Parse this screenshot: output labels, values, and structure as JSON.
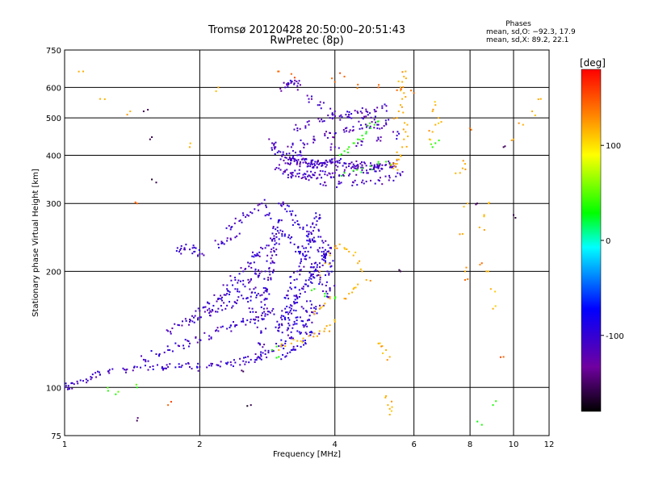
{
  "chart_data": {
    "type": "scatter",
    "title": "Tromsø 20120428 20:50:00–20:51:43",
    "subtitle": "RwPretec (8p)",
    "xlabel": "Frequency [MHz]",
    "ylabel": "Stationary phase Virtual Height [km]",
    "x_scale": "log",
    "y_scale": "log",
    "xlim": [
      1,
      12
    ],
    "ylim": [
      75,
      750
    ],
    "x_ticks": [
      1,
      2,
      4,
      6,
      8,
      10,
      12
    ],
    "y_ticks": [
      75,
      100,
      200,
      300,
      400,
      500,
      600,
      750
    ],
    "grid": true,
    "phases_box": {
      "title": "Phases",
      "line1": "mean, sd,O: −92.3, 17.9",
      "line2": "mean, sd,X: 89.2, 22.1"
    },
    "colorbar": {
      "label": "[deg]",
      "range": [
        -180,
        180
      ],
      "ticks": [
        100,
        0,
        -100
      ],
      "colormap": [
        "#000000",
        "#7000a0",
        "#0000ff",
        "#00ffff",
        "#00ff00",
        "#ffff00",
        "#ff8000",
        "#ff0000"
      ]
    },
    "series": [
      {
        "points_x": [
          1.0,
          1.02,
          1.05,
          1.1,
          1.15,
          1.2,
          1.25,
          1.35,
          1.45,
          1.55,
          1.65,
          1.7,
          1.8,
          1.9,
          2.0,
          2.1,
          2.2,
          2.3,
          2.4,
          2.5,
          2.6,
          2.7,
          2.8,
          2.9,
          3.0,
          1.5,
          1.6,
          1.7,
          1.8,
          1.9,
          2.0,
          2.1,
          2.2,
          2.3,
          2.4,
          2.5,
          2.6,
          2.7,
          2.8,
          2.9,
          1.7,
          1.8,
          1.9,
          2.0,
          2.1,
          2.2,
          2.3,
          2.4,
          2.5,
          2.6,
          2.7,
          2.8,
          1.9,
          2.0,
          2.1,
          2.2,
          2.3,
          2.4,
          2.5,
          2.6,
          2.7,
          2.8,
          2.1,
          2.2,
          2.3,
          2.4,
          2.5,
          2.6,
          2.7,
          2.8,
          2.9,
          2.35,
          2.45,
          2.55,
          2.65,
          2.75,
          2.85,
          2.7,
          2.72,
          2.74,
          2.76,
          2.78,
          2.8,
          2.82,
          2.84,
          2.86,
          2.88,
          2.9,
          2.92,
          2.94,
          2.96,
          2.98,
          3.0,
          2.62,
          2.64,
          2.66,
          2.68,
          1.8,
          1.85,
          1.9,
          1.95,
          2.0,
          2.2,
          2.3,
          2.4
        ],
        "points_y": [
          100,
          101,
          102,
          104,
          106,
          108,
          110,
          112,
          113,
          113,
          113,
          113,
          113,
          113,
          113,
          114,
          114,
          115,
          116,
          117,
          118,
          120,
          122,
          125,
          128,
          118,
          122,
          125,
          128,
          130,
          133,
          136,
          140,
          142,
          145,
          148,
          150,
          152,
          155,
          158,
          140,
          145,
          148,
          152,
          156,
          160,
          163,
          166,
          170,
          172,
          175,
          178,
          150,
          158,
          165,
          170,
          175,
          180,
          185,
          190,
          195,
          200,
          160,
          170,
          180,
          190,
          200,
          210,
          220,
          230,
          240,
          260,
          270,
          280,
          290,
          300,
          280,
          120,
          130,
          140,
          150,
          160,
          170,
          180,
          190,
          200,
          210,
          220,
          230,
          240,
          250,
          260,
          270,
          160,
          180,
          200,
          220,
          225,
          230,
          228,
          225,
          222,
          235,
          240,
          245
        ],
        "phase_deg": -105
      },
      {
        "points_x": [
          3.0,
          3.05,
          3.1,
          3.15,
          3.2,
          3.25,
          3.3,
          3.35,
          3.4,
          3.45,
          3.5,
          3.55,
          3.6,
          3.65,
          3.7,
          3.75,
          3.8,
          3.85,
          3.9,
          3.05,
          3.1,
          3.15,
          3.2,
          3.25,
          3.3,
          3.35,
          3.4,
          3.45,
          3.5,
          3.55,
          3.6,
          3.65,
          3.7,
          3.75,
          3.8,
          3.85,
          3.9,
          3.0,
          3.1,
          3.2,
          3.3,
          3.4,
          3.5,
          3.6,
          3.7,
          3.8,
          3.9,
          3.05,
          3.15,
          3.25,
          3.35,
          3.45,
          3.55,
          3.65,
          3.75,
          3.85,
          3.1,
          3.2,
          3.3,
          3.4,
          3.5,
          3.6,
          3.7,
          3.1,
          3.2,
          3.3,
          3.4,
          3.5,
          3.6,
          3.15,
          3.25,
          3.35,
          3.45,
          3.55
        ],
        "points_y": [
          140,
          145,
          150,
          155,
          160,
          165,
          170,
          175,
          180,
          185,
          190,
          195,
          200,
          205,
          210,
          215,
          220,
          225,
          230,
          150,
          160,
          170,
          180,
          190,
          200,
          210,
          220,
          230,
          240,
          250,
          260,
          270,
          280,
          240,
          220,
          200,
          180,
          300,
          290,
          280,
          270,
          260,
          250,
          240,
          230,
          220,
          210,
          250,
          245,
          235,
          225,
          215,
          205,
          195,
          185,
          175,
          130,
          135,
          140,
          145,
          150,
          155,
          160,
          120,
          125,
          128,
          132,
          136,
          138,
          142,
          148,
          152,
          158,
          164
        ],
        "phase_deg": -100
      },
      {
        "points_x": [
          2.9,
          2.95,
          3.0,
          3.05,
          3.1,
          3.15,
          3.2,
          3.25,
          3.3,
          3.35,
          3.4,
          3.45,
          3.5,
          3.55,
          3.6,
          3.65,
          3.7,
          3.75,
          3.8,
          3.85,
          3.9,
          3.95,
          4.0,
          4.1,
          4.2,
          4.3,
          4.4,
          4.5,
          4.6,
          4.7,
          4.8,
          4.9,
          5.0,
          5.1,
          5.2,
          5.3,
          5.4,
          3.0,
          3.1,
          3.2,
          3.3,
          3.4,
          3.5,
          3.6,
          3.7,
          3.8,
          3.9,
          4.0,
          4.2,
          4.4,
          4.6,
          4.8,
          5.0,
          3.2,
          3.4,
          3.6,
          3.8,
          4.0,
          4.2,
          4.4,
          4.6,
          4.8,
          5.0,
          5.2,
          3.3,
          3.5,
          3.7,
          3.9,
          4.1,
          4.3,
          4.5,
          4.7,
          4.9,
          5.1,
          3.1,
          3.15,
          3.2,
          3.25,
          3.3,
          3.5,
          3.7,
          4.0,
          4.3,
          4.6,
          4.9,
          3.2,
          3.5,
          3.8,
          4.1,
          4.4,
          4.7,
          5.0,
          5.3,
          5.6,
          3.25,
          3.3,
          3.35,
          4.0,
          4.5,
          5.0,
          5.5
        ],
        "points_y": [
          430,
          420,
          410,
          400,
          395,
          390,
          388,
          386,
          385,
          384,
          383,
          382,
          381,
          380,
          380,
          380,
          381,
          382,
          383,
          384,
          385,
          384,
          383,
          382,
          381,
          380,
          379,
          378,
          377,
          376,
          375,
          375,
          376,
          377,
          378,
          380,
          382,
          370,
          365,
          360,
          358,
          356,
          355,
          355,
          356,
          357,
          358,
          360,
          362,
          364,
          366,
          368,
          370,
          420,
          430,
          440,
          450,
          455,
          460,
          465,
          470,
          475,
          480,
          485,
          470,
          480,
          490,
          500,
          505,
          510,
          515,
          520,
          525,
          530,
          600,
          610,
          620,
          615,
          605,
          560,
          540,
          520,
          510,
          500,
          495,
          350,
          345,
          340,
          338,
          340,
          342,
          345,
          350,
          355,
          390,
          400,
          410,
          420,
          430,
          440,
          450
        ],
        "phase_deg": -110
      },
      {
        "points_x": [
          5.5,
          5.55,
          5.6,
          5.65,
          5.7,
          5.75,
          5.8,
          5.5,
          5.55,
          5.6,
          5.65,
          5.7,
          5.6,
          5.65,
          5.7,
          5.75,
          5.4,
          5.45,
          5.5,
          6.5,
          6.6,
          6.7,
          6.8,
          6.6,
          6.7,
          3.0,
          3.1,
          3.2,
          3.3,
          3.4,
          3.5,
          3.6,
          3.7,
          3.8,
          3.9,
          4.0,
          3.6,
          3.7,
          3.8,
          3.9,
          3.7,
          3.8,
          3.9,
          4.0,
          4.1,
          4.2,
          4.3,
          4.4,
          4.5,
          4.6,
          4.7,
          4.2,
          4.3,
          4.4,
          4.5,
          5.0,
          5.1,
          5.2,
          5.3,
          5.2,
          5.25,
          5.3,
          5.3,
          7.6,
          7.7,
          7.8,
          7.9,
          7.7,
          7.8,
          8.4,
          8.6,
          8.8,
          8.7,
          8.9,
          9.0,
          10.0,
          10.5,
          11.0,
          11.5,
          1.1,
          1.2,
          1.4,
          1.9,
          2.2
        ],
        "points_y": [
          380,
          390,
          400,
          420,
          440,
          460,
          480,
          500,
          520,
          540,
          560,
          580,
          600,
          620,
          640,
          660,
          370,
          380,
          390,
          440,
          460,
          480,
          500,
          520,
          540,
          125,
          128,
          130,
          132,
          134,
          136,
          138,
          140,
          142,
          145,
          148,
          155,
          160,
          165,
          170,
          200,
          210,
          220,
          230,
          235,
          230,
          225,
          220,
          210,
          200,
          190,
          170,
          175,
          180,
          185,
          130,
          128,
          125,
          120,
          95,
          90,
          88,
          85,
          360,
          370,
          380,
          300,
          250,
          200,
          260,
          280,
          300,
          200,
          180,
          160,
          440,
          480,
          520,
          560,
          660,
          560,
          520,
          420,
          600
        ],
        "phase_deg": 110
      },
      {
        "points_x": [
          4.1,
          4.2,
          4.3,
          4.4,
          4.5,
          4.6,
          4.7,
          4.8,
          4.9,
          5.0,
          4.2,
          4.4,
          4.6,
          4.8,
          5.0,
          5.2,
          6.6,
          6.7,
          3.6,
          3.8,
          4.0,
          2.9,
          3.0,
          1.25,
          1.3,
          1.45,
          8.5,
          9.0
        ],
        "points_y": [
          400,
          410,
          420,
          430,
          440,
          450,
          460,
          470,
          480,
          490,
          360,
          365,
          370,
          375,
          380,
          385,
          420,
          430,
          180,
          175,
          170,
          125,
          120,
          98,
          96,
          100,
          80,
          90
        ],
        "phase_deg": 30
      },
      {
        "points_x": [
          4.0,
          4.5,
          5.0,
          5.5,
          6.0,
          1.7,
          1.45,
          8.0,
          8.5,
          3.0,
          3.2,
          4.2,
          9.5,
          7.8
        ],
        "points_y": [
          620,
          610,
          600,
          590,
          580,
          90,
          300,
          470,
          210,
          660,
          650,
          640,
          120,
          190
        ],
        "phase_deg": 140
      },
      {
        "points_x": [
          1.45,
          1.5,
          1.55,
          1.6,
          2.5,
          5.6,
          8.3,
          9.5,
          10.0,
          2.6
        ],
        "points_y": [
          82,
          520,
          440,
          340,
          110,
          200,
          300,
          420,
          280,
          90
        ],
        "phase_deg": -155
      }
    ]
  }
}
